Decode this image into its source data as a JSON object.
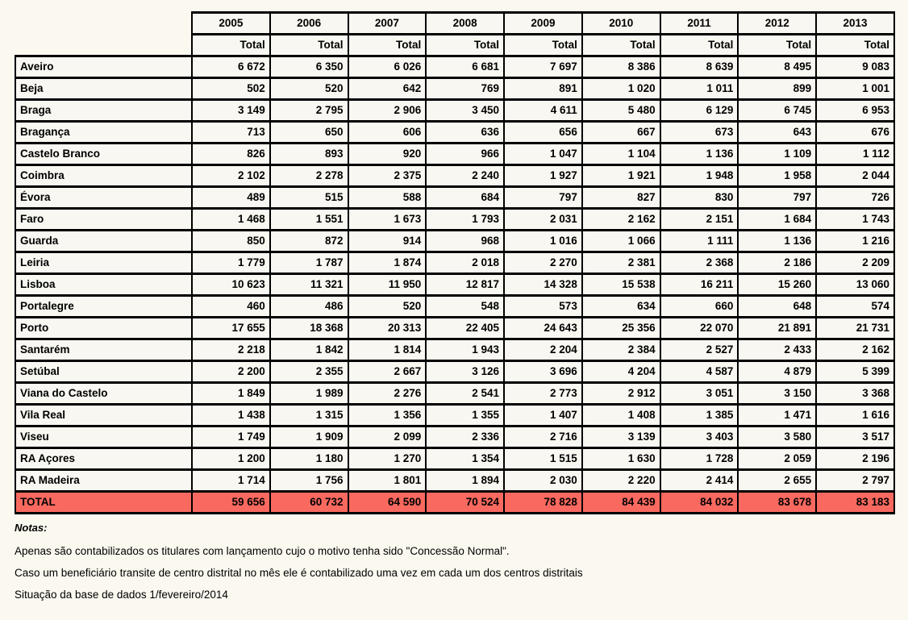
{
  "table": {
    "years": [
      "2005",
      "2006",
      "2007",
      "2008",
      "2009",
      "2010",
      "2011",
      "2012",
      "2013"
    ],
    "subheader_label": "Total",
    "rows": [
      {
        "name": "Aveiro",
        "values": [
          "6 672",
          "6 350",
          "6 026",
          "6 681",
          "7 697",
          "8 386",
          "8 639",
          "8 495",
          "9 083"
        ]
      },
      {
        "name": "Beja",
        "values": [
          "502",
          "520",
          "642",
          "769",
          "891",
          "1 020",
          "1 011",
          "899",
          "1 001"
        ]
      },
      {
        "name": "Braga",
        "values": [
          "3 149",
          "2 795",
          "2 906",
          "3 450",
          "4 611",
          "5 480",
          "6 129",
          "6 745",
          "6 953"
        ]
      },
      {
        "name": "Bragança",
        "values": [
          "713",
          "650",
          "606",
          "636",
          "656",
          "667",
          "673",
          "643",
          "676"
        ]
      },
      {
        "name": "Castelo Branco",
        "values": [
          "826",
          "893",
          "920",
          "966",
          "1 047",
          "1 104",
          "1 136",
          "1 109",
          "1 112"
        ]
      },
      {
        "name": "Coimbra",
        "values": [
          "2 102",
          "2 278",
          "2 375",
          "2 240",
          "1 927",
          "1 921",
          "1 948",
          "1 958",
          "2 044"
        ]
      },
      {
        "name": "Évora",
        "values": [
          "489",
          "515",
          "588",
          "684",
          "797",
          "827",
          "830",
          "797",
          "726"
        ]
      },
      {
        "name": "Faro",
        "values": [
          "1 468",
          "1 551",
          "1 673",
          "1 793",
          "2 031",
          "2 162",
          "2 151",
          "1 684",
          "1 743"
        ]
      },
      {
        "name": "Guarda",
        "values": [
          "850",
          "872",
          "914",
          "968",
          "1 016",
          "1 066",
          "1 111",
          "1 136",
          "1 216"
        ]
      },
      {
        "name": "Leiria",
        "values": [
          "1 779",
          "1 787",
          "1 874",
          "2 018",
          "2 270",
          "2 381",
          "2 368",
          "2 186",
          "2 209"
        ]
      },
      {
        "name": "Lisboa",
        "values": [
          "10 623",
          "11 321",
          "11 950",
          "12 817",
          "14 328",
          "15 538",
          "16 211",
          "15 260",
          "13 060"
        ]
      },
      {
        "name": "Portalegre",
        "values": [
          "460",
          "486",
          "520",
          "548",
          "573",
          "634",
          "660",
          "648",
          "574"
        ]
      },
      {
        "name": "Porto",
        "values": [
          "17 655",
          "18 368",
          "20 313",
          "22 405",
          "24 643",
          "25 356",
          "22 070",
          "21 891",
          "21 731"
        ]
      },
      {
        "name": "Santarém",
        "values": [
          "2 218",
          "1 842",
          "1 814",
          "1 943",
          "2 204",
          "2 384",
          "2 527",
          "2 433",
          "2 162"
        ]
      },
      {
        "name": "Setúbal",
        "values": [
          "2 200",
          "2 355",
          "2 667",
          "3 126",
          "3 696",
          "4 204",
          "4 587",
          "4 879",
          "5 399"
        ]
      },
      {
        "name": "Viana do Castelo",
        "values": [
          "1 849",
          "1 989",
          "2 276",
          "2 541",
          "2 773",
          "2 912",
          "3 051",
          "3 150",
          "3 368"
        ]
      },
      {
        "name": "Vila Real",
        "values": [
          "1 438",
          "1 315",
          "1 356",
          "1 355",
          "1 407",
          "1 408",
          "1 385",
          "1 471",
          "1 616"
        ]
      },
      {
        "name": "Viseu",
        "values": [
          "1 749",
          "1 909",
          "2 099",
          "2 336",
          "2 716",
          "3 139",
          "3 403",
          "3 580",
          "3 517"
        ]
      },
      {
        "name": "RA Açores",
        "values": [
          "1 200",
          "1 180",
          "1 270",
          "1 354",
          "1 515",
          "1 630",
          "1 728",
          "2 059",
          "2 196"
        ]
      },
      {
        "name": "RA Madeira",
        "values": [
          "1 714",
          "1 756",
          "1 801",
          "1 894",
          "2 030",
          "2 220",
          "2 414",
          "2 655",
          "2 797"
        ]
      }
    ],
    "total_row": {
      "name": "TOTAL",
      "values": [
        "59 656",
        "60 732",
        "64 590",
        "70 524",
        "78 828",
        "84 439",
        "84 032",
        "83 678",
        "83 183"
      ]
    }
  },
  "notes": {
    "title": "Notas:",
    "lines": [
      "Apenas são contabilizados os titulares com lançamento cujo o motivo tenha sido \"Concessão Normal\".",
      "Caso um beneficiário transite de centro distrital no mês ele é contabilizado uma vez em cada um dos centros distritais",
      "Situação da base de dados 1/fevereiro/2014"
    ]
  },
  "colors": {
    "total_row_bg": "#f9695f",
    "page_bg": "#faf8ef",
    "cell_bg": "#f8f7f1",
    "border": "#000000"
  }
}
